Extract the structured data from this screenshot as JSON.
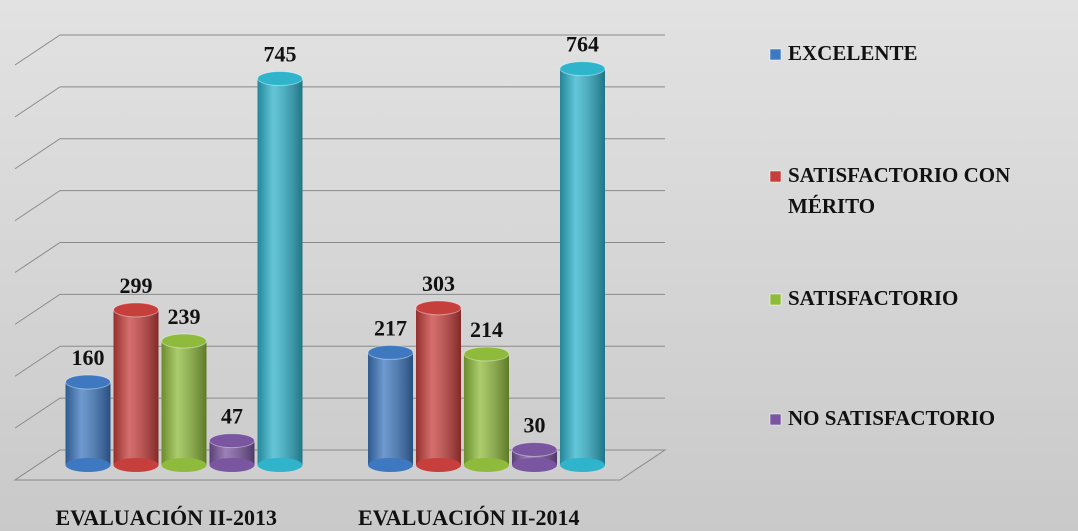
{
  "chart_data": {
    "type": "bar3d",
    "categories": [
      "EVALUACIÓN II-2013",
      "EVALUACIÓN II-2014"
    ],
    "series": [
      {
        "name": "EXCELENTE",
        "color": "#3d78c0",
        "values": [
          160,
          217
        ]
      },
      {
        "name": "SATISFACTORIO CON MÉRITO",
        "color": "#c73f3c",
        "values": [
          299,
          303
        ]
      },
      {
        "name": "SATISFACTORIO",
        "color": "#8fbb3c",
        "values": [
          239,
          214
        ]
      },
      {
        "name": "NO SATISFACTORIO",
        "color": "#7a56a0",
        "values": [
          47,
          30
        ]
      },
      {
        "color": "#2fb4cc",
        "values": [
          745,
          764
        ]
      }
    ],
    "ylim": [
      0,
      800
    ],
    "yticks": [
      0,
      100,
      200,
      300,
      400,
      500,
      600,
      700,
      800
    ],
    "grid": true,
    "legend": "right"
  }
}
